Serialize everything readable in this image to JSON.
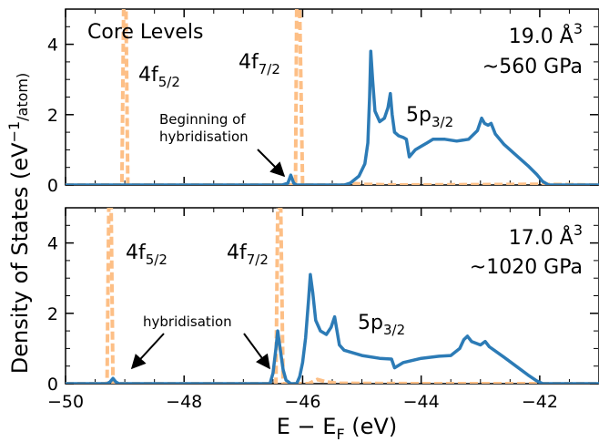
{
  "axis": {
    "ylabel_main": "Density of States (eV",
    "ylabel_sup": "−1",
    "ylabel_tail": "/atom)",
    "xlabel_main": "E − E",
    "xlabel_sub": "F",
    "xlabel_tail": " (eV)"
  },
  "panels": [
    {
      "corner_label": "Core Levels",
      "volume": "19.0 Å",
      "volume_sup": "3",
      "pressure": "~560 GPa",
      "f52": {
        "main": "4f",
        "sub": "5/2"
      },
      "f72": {
        "main": "4f",
        "sub": "7/2"
      },
      "p32": {
        "main": "5p",
        "sub": "3/2"
      },
      "hybrid_line1": "Beginning of",
      "hybrid_line2": "hybridisation"
    },
    {
      "volume": "17.0 Å",
      "volume_sup": "3",
      "pressure": "~1020 GPa",
      "f52": {
        "main": "4f",
        "sub": "5/2"
      },
      "f72": {
        "main": "4f",
        "sub": "7/2"
      },
      "p32": {
        "main": "5p",
        "sub": "3/2"
      },
      "hybrid_line1": "hybridisation"
    }
  ],
  "colors": {
    "p_curve": "#2c7bb6",
    "f_curve": "#fdbf86"
  },
  "chart_data": [
    {
      "type": "line",
      "xlim": [
        -50,
        -41
      ],
      "ylim": [
        0,
        5
      ],
      "x_ticks": [
        -50,
        -48,
        -46,
        -44,
        -42
      ],
      "y_ticks": [
        0,
        2,
        4
      ],
      "grid": false,
      "series": [
        {
          "points": [
            [
              -50,
              0
            ],
            [
              -46.35,
              0
            ],
            [
              -46.25,
              0.05
            ],
            [
              -46.2,
              0.28
            ],
            [
              -46.15,
              0.05
            ],
            [
              -46.1,
              0
            ],
            [
              -45.3,
              0
            ],
            [
              -45.2,
              0.05
            ],
            [
              -45.05,
              0.25
            ],
            [
              -44.95,
              0.6
            ],
            [
              -44.9,
              1.2
            ],
            [
              -44.87,
              2.5
            ],
            [
              -44.85,
              3.8
            ],
            [
              -44.82,
              3.0
            ],
            [
              -44.78,
              2.1
            ],
            [
              -44.7,
              1.8
            ],
            [
              -44.62,
              1.9
            ],
            [
              -44.56,
              2.2
            ],
            [
              -44.52,
              2.6
            ],
            [
              -44.49,
              2.0
            ],
            [
              -44.45,
              1.5
            ],
            [
              -44.38,
              1.4
            ],
            [
              -44.3,
              1.35
            ],
            [
              -44.25,
              1.3
            ],
            [
              -44.2,
              0.8
            ],
            [
              -44.1,
              1.0
            ],
            [
              -44.0,
              1.1
            ],
            [
              -43.9,
              1.2
            ],
            [
              -43.8,
              1.3
            ],
            [
              -43.6,
              1.3
            ],
            [
              -43.4,
              1.25
            ],
            [
              -43.2,
              1.3
            ],
            [
              -43.05,
              1.55
            ],
            [
              -42.98,
              1.9
            ],
            [
              -42.93,
              1.75
            ],
            [
              -42.87,
              1.7
            ],
            [
              -42.82,
              1.75
            ],
            [
              -42.75,
              1.45
            ],
            [
              -42.6,
              1.15
            ],
            [
              -42.4,
              0.85
            ],
            [
              -42.2,
              0.55
            ],
            [
              -42.05,
              0.3
            ],
            [
              -41.95,
              0.1
            ],
            [
              -41.85,
              0
            ],
            [
              -41,
              0
            ]
          ]
        },
        {
          "points": [
            [
              -50,
              0
            ],
            [
              -49.05,
              0
            ],
            [
              -49.02,
              5.0
            ],
            [
              -48.98,
              5.0
            ],
            [
              -48.95,
              0
            ],
            [
              -46.12,
              0
            ],
            [
              -46.1,
              5.0
            ],
            [
              -46.05,
              5.0
            ],
            [
              -46.0,
              0
            ],
            [
              -45.2,
              0
            ],
            [
              -45.1,
              0.04
            ],
            [
              -44.95,
              0.02
            ],
            [
              -44.5,
              0
            ],
            [
              -43.0,
              0.01
            ],
            [
              -42.0,
              0.02
            ],
            [
              -41,
              0
            ]
          ]
        }
      ]
    },
    {
      "type": "line",
      "xlim": [
        -50,
        -41
      ],
      "ylim": [
        0,
        5
      ],
      "x_ticks": [
        -50,
        -48,
        -46,
        -44,
        -42
      ],
      "y_ticks": [
        0,
        2,
        4
      ],
      "grid": false,
      "series": [
        {
          "points": [
            [
              -50,
              0
            ],
            [
              -49.3,
              0
            ],
            [
              -49.25,
              0.05
            ],
            [
              -49.2,
              0.15
            ],
            [
              -49.15,
              0.05
            ],
            [
              -49.1,
              0
            ],
            [
              -46.55,
              0
            ],
            [
              -46.5,
              0.3
            ],
            [
              -46.45,
              1.0
            ],
            [
              -46.42,
              1.5
            ],
            [
              -46.38,
              1.0
            ],
            [
              -46.33,
              0.4
            ],
            [
              -46.28,
              0.1
            ],
            [
              -46.2,
              0
            ],
            [
              -46.1,
              0
            ],
            [
              -46.05,
              0.2
            ],
            [
              -46.0,
              0.6
            ],
            [
              -45.95,
              1.3
            ],
            [
              -45.9,
              2.4
            ],
            [
              -45.87,
              3.1
            ],
            [
              -45.83,
              2.6
            ],
            [
              -45.78,
              1.8
            ],
            [
              -45.7,
              1.5
            ],
            [
              -45.6,
              1.4
            ],
            [
              -45.52,
              1.6
            ],
            [
              -45.46,
              1.9
            ],
            [
              -45.42,
              1.5
            ],
            [
              -45.38,
              1.1
            ],
            [
              -45.3,
              0.95
            ],
            [
              -45.0,
              0.8
            ],
            [
              -44.7,
              0.72
            ],
            [
              -44.5,
              0.7
            ],
            [
              -44.45,
              0.45
            ],
            [
              -44.3,
              0.6
            ],
            [
              -44.0,
              0.72
            ],
            [
              -43.7,
              0.78
            ],
            [
              -43.5,
              0.8
            ],
            [
              -43.35,
              1.0
            ],
            [
              -43.28,
              1.25
            ],
            [
              -43.22,
              1.35
            ],
            [
              -43.15,
              1.2
            ],
            [
              -43.0,
              1.1
            ],
            [
              -42.92,
              1.2
            ],
            [
              -42.85,
              1.05
            ],
            [
              -42.6,
              0.75
            ],
            [
              -42.4,
              0.5
            ],
            [
              -42.2,
              0.25
            ],
            [
              -42.05,
              0.08
            ],
            [
              -41.95,
              0
            ],
            [
              -41,
              0
            ]
          ]
        },
        {
          "points": [
            [
              -50,
              0
            ],
            [
              -49.3,
              0
            ],
            [
              -49.27,
              5.0
            ],
            [
              -49.23,
              5.0
            ],
            [
              -49.2,
              0
            ],
            [
              -46.45,
              0
            ],
            [
              -46.42,
              5.0
            ],
            [
              -46.37,
              5.0
            ],
            [
              -46.33,
              0
            ],
            [
              -45.9,
              0
            ],
            [
              -45.75,
              0.12
            ],
            [
              -45.6,
              0.05
            ],
            [
              -45.4,
              0.01
            ],
            [
              -44,
              0
            ],
            [
              -41,
              0
            ]
          ]
        }
      ]
    }
  ]
}
